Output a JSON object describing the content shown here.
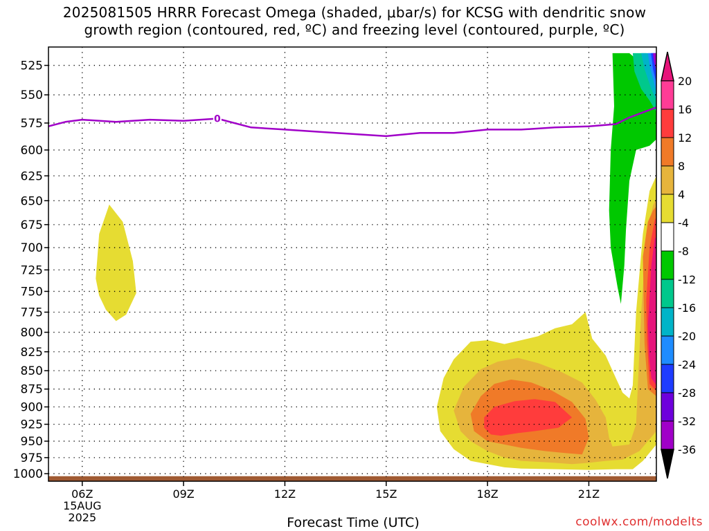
{
  "chart_data": {
    "type": "contour",
    "title_line1": "2025081505 HRRR Forecast Omega (shaded, μbar/s) for KCSG with dendritic snow",
    "title_line2": "growth region (contoured, red, ºC) and freezing level (contoured, purple, ºC)",
    "xlabel": "Forecast Time (UTC)",
    "credit": "coolwx.com/modelts",
    "x_start_hour": 5,
    "x_end_hour": 23,
    "x_ticks": [
      {
        "hour": 6,
        "label": "06Z",
        "sub1": "15AUG",
        "sub2": "2025"
      },
      {
        "hour": 9,
        "label": "09Z",
        "sub1": "",
        "sub2": ""
      },
      {
        "hour": 12,
        "label": "12Z",
        "sub1": "",
        "sub2": ""
      },
      {
        "hour": 15,
        "label": "15Z",
        "sub1": "",
        "sub2": ""
      },
      {
        "hour": 18,
        "label": "18Z",
        "sub1": "",
        "sub2": ""
      },
      {
        "hour": 21,
        "label": "21Z",
        "sub1": "",
        "sub2": ""
      }
    ],
    "y_axis": {
      "scale": "log",
      "min": 510,
      "max": 1012,
      "inverted": true
    },
    "y_ticks": [
      525,
      550,
      575,
      600,
      625,
      650,
      675,
      700,
      725,
      750,
      775,
      800,
      825,
      850,
      875,
      900,
      925,
      950,
      975,
      1000
    ],
    "grid": true,
    "colorbar": {
      "labels": [
        20,
        16,
        12,
        8,
        4,
        -4,
        -8,
        -12,
        -16,
        -20,
        -24,
        -28,
        -32,
        -36
      ],
      "colors": [
        "#ff3c96",
        "#ff3c3c",
        "#f07a28",
        "#e6b43c",
        "#e6dc32",
        "#ffffff",
        "#00c800",
        "#00c88c",
        "#00b4c8",
        "#1e8cff",
        "#1e3cff",
        "#6e00dc",
        "#a000c8",
        "#a0a0a0"
      ],
      "top_extend_color": "#e6147a",
      "bottom_extend_color": "#000000"
    },
    "freezing_level": {
      "label": "0",
      "label_hour": 10.0,
      "color": "#a000c8",
      "points": [
        [
          5.0,
          578
        ],
        [
          5.5,
          574
        ],
        [
          6.0,
          572
        ],
        [
          7.0,
          574
        ],
        [
          8.0,
          572
        ],
        [
          9.0,
          573
        ],
        [
          10.0,
          571
        ],
        [
          11.0,
          579
        ],
        [
          12.0,
          581
        ],
        [
          13.0,
          583
        ],
        [
          14.0,
          585
        ],
        [
          15.0,
          587
        ],
        [
          16.0,
          584
        ],
        [
          17.0,
          584
        ],
        [
          18.0,
          581
        ],
        [
          19.0,
          581
        ],
        [
          20.0,
          579
        ],
        [
          21.0,
          578
        ],
        [
          21.8,
          576
        ],
        [
          22.2,
          570
        ],
        [
          23.0,
          561
        ]
      ]
    },
    "omega_regions": [
      {
        "level": 4,
        "color": "#e6dc32",
        "points": [
          [
            6.4,
            735
          ],
          [
            6.5,
            685
          ],
          [
            6.8,
            654
          ],
          [
            7.2,
            672
          ],
          [
            7.5,
            715
          ],
          [
            7.6,
            752
          ],
          [
            7.3,
            778
          ],
          [
            7.0,
            786
          ],
          [
            6.7,
            772
          ],
          [
            6.5,
            755
          ]
        ]
      },
      {
        "level": 4,
        "color": "#e6dc32",
        "points": [
          [
            16.5,
            900
          ],
          [
            16.7,
            860
          ],
          [
            17.0,
            835
          ],
          [
            17.5,
            812
          ],
          [
            18.0,
            810
          ],
          [
            18.5,
            815
          ],
          [
            19.0,
            810
          ],
          [
            19.5,
            805
          ],
          [
            20.0,
            795
          ],
          [
            20.5,
            790
          ],
          [
            20.9,
            775
          ],
          [
            21.1,
            808
          ],
          [
            21.5,
            830
          ],
          [
            21.8,
            860
          ],
          [
            22.0,
            880
          ],
          [
            22.2,
            888
          ],
          [
            22.3,
            870
          ],
          [
            22.4,
            775
          ],
          [
            22.6,
            685
          ],
          [
            22.8,
            640
          ],
          [
            23.0,
            625
          ],
          [
            23.0,
            955
          ],
          [
            22.6,
            980
          ],
          [
            22.3,
            993
          ],
          [
            21.8,
            993
          ],
          [
            21.0,
            994
          ],
          [
            20.0,
            993
          ],
          [
            19.0,
            992
          ],
          [
            18.5,
            990
          ],
          [
            18.0,
            985
          ],
          [
            17.5,
            980
          ],
          [
            17.0,
            962
          ],
          [
            16.6,
            935
          ]
        ]
      },
      {
        "level": 8,
        "color": "#e6b43c",
        "points": [
          [
            17.0,
            905
          ],
          [
            17.3,
            872
          ],
          [
            17.8,
            848
          ],
          [
            18.3,
            838
          ],
          [
            18.9,
            833
          ],
          [
            19.5,
            840
          ],
          [
            20.2,
            852
          ],
          [
            20.8,
            866
          ],
          [
            21.2,
            890
          ],
          [
            21.5,
            915
          ],
          [
            21.6,
            945
          ],
          [
            21.7,
            958
          ],
          [
            22.2,
            955
          ],
          [
            22.4,
            925
          ],
          [
            22.55,
            775
          ],
          [
            22.7,
            690
          ],
          [
            22.9,
            655
          ],
          [
            23.0,
            648
          ],
          [
            23.0,
            935
          ],
          [
            22.5,
            965
          ],
          [
            22.0,
            978
          ],
          [
            21.5,
            980
          ],
          [
            21.0,
            983
          ],
          [
            20.5,
            985
          ],
          [
            20.0,
            983
          ],
          [
            19.0,
            980
          ],
          [
            18.5,
            975
          ],
          [
            18.0,
            965
          ],
          [
            17.5,
            950
          ],
          [
            17.2,
            935
          ]
        ]
      },
      {
        "level": 12,
        "color": "#f07a28",
        "points": [
          [
            17.5,
            910
          ],
          [
            17.8,
            885
          ],
          [
            18.2,
            868
          ],
          [
            18.7,
            862
          ],
          [
            19.3,
            866
          ],
          [
            19.9,
            877
          ],
          [
            20.5,
            893
          ],
          [
            20.9,
            917
          ],
          [
            21.0,
            945
          ],
          [
            20.8,
            970
          ],
          [
            20.3,
            968
          ],
          [
            19.7,
            965
          ],
          [
            19.0,
            960
          ],
          [
            18.5,
            955
          ],
          [
            18.0,
            950
          ],
          [
            17.6,
            935
          ]
        ]
      },
      {
        "level": 12,
        "color": "#f07a28",
        "points": [
          [
            22.6,
            710
          ],
          [
            22.75,
            672
          ],
          [
            22.9,
            660
          ],
          [
            23.0,
            656
          ],
          [
            23.0,
            885
          ],
          [
            22.75,
            875
          ],
          [
            22.65,
            815
          ]
        ]
      },
      {
        "level": 16,
        "color": "#ff3c3c",
        "points": [
          [
            17.9,
            915
          ],
          [
            18.2,
            900
          ],
          [
            18.8,
            892
          ],
          [
            19.4,
            889
          ],
          [
            20.0,
            893
          ],
          [
            20.5,
            915
          ],
          [
            20.1,
            930
          ],
          [
            19.4,
            935
          ],
          [
            18.9,
            938
          ],
          [
            18.4,
            942
          ],
          [
            18.1,
            940
          ],
          [
            17.9,
            930
          ]
        ]
      },
      {
        "level": 16,
        "color": "#ff3c3c",
        "points": [
          [
            22.7,
            760
          ],
          [
            22.8,
            700
          ],
          [
            22.95,
            670
          ],
          [
            23.0,
            667
          ],
          [
            23.0,
            878
          ],
          [
            22.8,
            868
          ],
          [
            22.72,
            810
          ]
        ]
      },
      {
        "level": 20,
        "color": "#e6147a",
        "points": [
          [
            22.75,
            790
          ],
          [
            22.85,
            720
          ],
          [
            22.95,
            690
          ],
          [
            23.0,
            688
          ],
          [
            23.0,
            870
          ],
          [
            22.85,
            860
          ],
          [
            22.78,
            830
          ]
        ]
      },
      {
        "level": -4,
        "color": "#00c800",
        "points": [
          [
            21.7,
            515
          ],
          [
            22.2,
            515
          ],
          [
            22.5,
            522
          ],
          [
            22.8,
            537
          ],
          [
            23.0,
            548
          ],
          [
            23.0,
            590
          ],
          [
            22.8,
            596
          ],
          [
            22.4,
            600
          ],
          [
            22.2,
            630
          ],
          [
            22.1,
            680
          ],
          [
            22.05,
            720
          ],
          [
            21.95,
            765
          ],
          [
            21.85,
            745
          ],
          [
            21.65,
            700
          ],
          [
            21.6,
            660
          ],
          [
            21.65,
            600
          ],
          [
            21.75,
            560
          ]
        ]
      },
      {
        "level": -8,
        "color": "#00c88c",
        "points": [
          [
            22.3,
            515
          ],
          [
            22.7,
            515
          ],
          [
            23.0,
            517
          ],
          [
            23.0,
            565
          ],
          [
            22.8,
            555
          ],
          [
            22.55,
            545
          ],
          [
            22.35,
            530
          ]
        ]
      },
      {
        "level": -12,
        "color": "#00b4c8",
        "points": [
          [
            22.55,
            515
          ],
          [
            23.0,
            515
          ],
          [
            23.0,
            555
          ],
          [
            22.85,
            545
          ],
          [
            22.65,
            528
          ]
        ]
      },
      {
        "level": -16,
        "color": "#1e8cff",
        "points": [
          [
            22.75,
            515
          ],
          [
            23.0,
            515
          ],
          [
            23.0,
            548
          ],
          [
            22.9,
            536
          ],
          [
            22.8,
            525
          ]
        ]
      },
      {
        "level": -20,
        "color": "#1e3cff",
        "points": [
          [
            22.84,
            515
          ],
          [
            23.0,
            515
          ],
          [
            23.0,
            540
          ],
          [
            22.9,
            528
          ]
        ]
      },
      {
        "level": -28,
        "color": "#a000c8",
        "points": [
          [
            22.9,
            515
          ],
          [
            23.0,
            515
          ],
          [
            23.0,
            530
          ],
          [
            22.93,
            522
          ]
        ]
      }
    ],
    "terrain": {
      "color": "#a05a32",
      "top_hpa": 1004
    }
  }
}
